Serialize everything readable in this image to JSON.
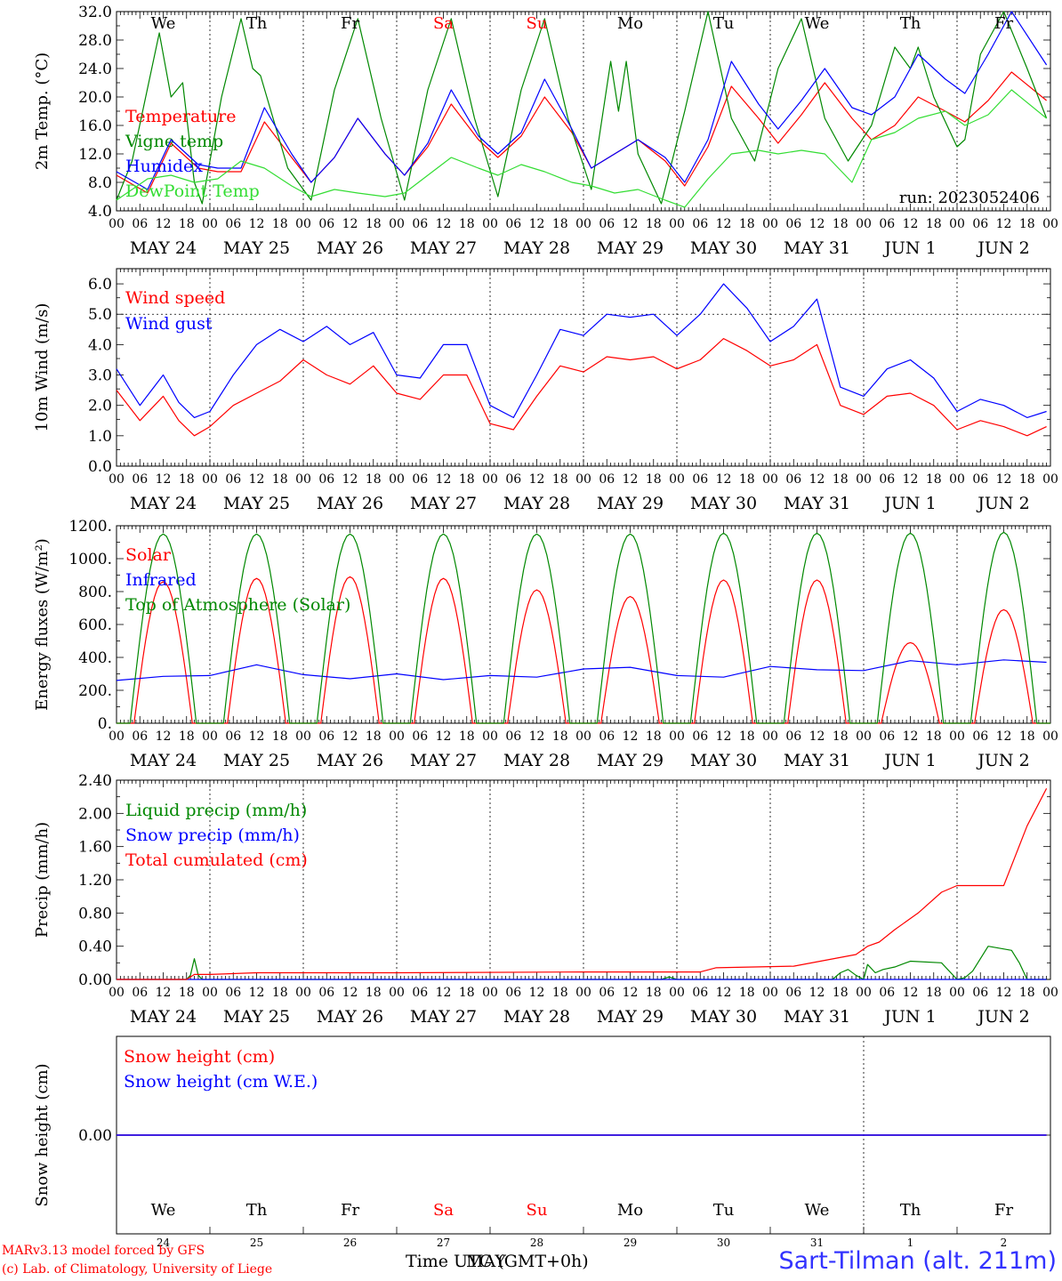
{
  "meta": {
    "run_label": "run: 2023052406",
    "model_credit": "MARv3.13 model forced by GFS",
    "lab_credit": "(c) Lab. of Climatology, University of Liege",
    "time_label": "Time UTC (GMT+0h)",
    "time_label_overlay": "MAY",
    "station": "Sart-Tilman (alt. 211m)"
  },
  "days": {
    "weekdays": [
      "We",
      "Th",
      "Fr",
      "Sa",
      "Su",
      "Mo",
      "Tu",
      "We",
      "Th",
      "Fr"
    ],
    "weekday_colors": [
      "#000000",
      "#000000",
      "#000000",
      "#ff0000",
      "#ff0000",
      "#000000",
      "#000000",
      "#000000",
      "#000000",
      "#000000"
    ],
    "dates": [
      "MAY 24",
      "MAY 25",
      "MAY 26",
      "MAY 27",
      "MAY 28",
      "MAY 29",
      "MAY 30",
      "MAY 31",
      "JUN  1",
      "JUN  2"
    ],
    "day_numbers": [
      "24",
      "25",
      "26",
      "27",
      "28",
      "29",
      "30",
      "31",
      "1",
      "2"
    ],
    "hour_ticks": [
      "00",
      "06",
      "12",
      "18"
    ],
    "end_tick": "00"
  },
  "chart_data": [
    {
      "type": "line",
      "ylabel": "2m Temp. (°C)",
      "ylim": [
        4,
        32
      ],
      "yticks": [
        "4.0",
        "8.0",
        "12.0",
        "16.0",
        "20.0",
        "24.0",
        "28.0",
        "32.0"
      ],
      "x_units": "hours since 2023-05-24 00 UTC",
      "reference_line": null,
      "series": [
        {
          "name": "Temperature",
          "color": "#ff0000",
          "x": [
            0,
            8,
            14,
            21,
            26,
            32,
            38,
            45,
            50,
            56,
            62,
            69,
            74,
            80,
            86,
            93,
            98,
            104,
            110,
            117,
            122,
            128,
            134,
            141,
            146,
            152,
            158,
            165,
            170,
            176,
            182,
            189,
            194,
            200,
            206,
            213,
            218,
            224,
            230,
            239
          ],
          "values": [
            9.0,
            6.5,
            13.5,
            10.0,
            9.5,
            9.5,
            16.5,
            11.5,
            8.0,
            11.5,
            17.0,
            12.0,
            9.0,
            13.0,
            19.0,
            14.0,
            11.5,
            14.5,
            20.0,
            15.0,
            10.0,
            12.0,
            14.0,
            11.0,
            7.5,
            13.0,
            21.5,
            17.0,
            13.5,
            17.5,
            22.0,
            17.0,
            14.0,
            16.0,
            20.0,
            18.0,
            16.5,
            19.5,
            23.5,
            19.5
          ]
        },
        {
          "name": "Vigne temp",
          "color": "#008800",
          "x": [
            0,
            4,
            11,
            14,
            17,
            20,
            22,
            27,
            32,
            35,
            37,
            44,
            50,
            56,
            62,
            68,
            74,
            80,
            86,
            92,
            98,
            104,
            110,
            116,
            122,
            127,
            129,
            131,
            134,
            140,
            146,
            152,
            158,
            164,
            170,
            176,
            182,
            188,
            194,
            200,
            204,
            206,
            210,
            216,
            218,
            222,
            228,
            234,
            239
          ],
          "values": [
            5.5,
            11.0,
            29.0,
            20.0,
            22.0,
            8.0,
            5.0,
            20.0,
            31.0,
            24.0,
            23.0,
            10.0,
            5.5,
            21.0,
            31.0,
            17.0,
            5.5,
            21.0,
            31.0,
            17.0,
            6.0,
            21.0,
            31.0,
            17.0,
            7.0,
            25.0,
            18.0,
            25.0,
            12.0,
            5.0,
            18.0,
            32.0,
            17.0,
            11.0,
            24.0,
            31.0,
            17.0,
            11.0,
            16.0,
            27.0,
            24.0,
            27.0,
            20.0,
            13.0,
            14.0,
            26.0,
            32.0,
            24.0,
            17.0
          ]
        },
        {
          "name": "Humidex",
          "color": "#0000ff",
          "x": [
            0,
            8,
            14,
            21,
            26,
            32,
            38,
            45,
            50,
            56,
            62,
            69,
            74,
            80,
            86,
            93,
            98,
            104,
            110,
            117,
            122,
            128,
            134,
            141,
            146,
            152,
            158,
            165,
            170,
            176,
            182,
            189,
            194,
            200,
            206,
            213,
            218,
            224,
            230,
            239
          ],
          "values": [
            9.5,
            7.0,
            14.0,
            10.5,
            10.0,
            10.0,
            18.5,
            12.0,
            8.0,
            11.5,
            17.0,
            12.0,
            9.0,
            13.5,
            21.0,
            14.5,
            12.0,
            15.0,
            22.5,
            15.5,
            10.0,
            12.0,
            14.0,
            11.5,
            8.0,
            14.0,
            25.0,
            19.0,
            15.5,
            19.5,
            24.0,
            18.5,
            17.5,
            20.0,
            26.0,
            22.5,
            20.5,
            26.0,
            32.0,
            24.5
          ]
        },
        {
          "name": "DewPoint Temp",
          "color": "#33dd33",
          "x": [
            0,
            8,
            14,
            20,
            26,
            32,
            38,
            45,
            50,
            56,
            62,
            69,
            74,
            80,
            86,
            93,
            98,
            104,
            110,
            117,
            122,
            128,
            134,
            141,
            146,
            152,
            158,
            165,
            170,
            176,
            182,
            189,
            194,
            200,
            206,
            213,
            218,
            224,
            230,
            239
          ],
          "values": [
            5.5,
            8.5,
            9.0,
            8.0,
            8.5,
            11.0,
            10.0,
            7.5,
            6.0,
            7.0,
            6.5,
            6.0,
            6.5,
            9.0,
            11.5,
            10.0,
            9.0,
            10.5,
            9.5,
            8.0,
            7.5,
            6.5,
            7.0,
            5.5,
            4.5,
            8.5,
            12.0,
            12.5,
            12.0,
            12.5,
            12.0,
            8.0,
            14.0,
            15.0,
            17.0,
            18.0,
            16.0,
            17.5,
            21.0,
            17.0
          ]
        }
      ]
    },
    {
      "type": "line",
      "ylabel": "10m Wind (m/s)",
      "ylim": [
        0,
        6.5
      ],
      "yticks": [
        "0.0",
        "1.0",
        "2.0",
        "3.0",
        "4.0",
        "5.0",
        "6.0"
      ],
      "x_units": "hours since 2023-05-24 00 UTC",
      "reference_line": 5.0,
      "series": [
        {
          "name": "Wind speed",
          "color": "#ff0000",
          "x": [
            0,
            6,
            12,
            16,
            20,
            24,
            30,
            36,
            42,
            48,
            54,
            60,
            66,
            72,
            78,
            84,
            90,
            96,
            102,
            108,
            114,
            120,
            126,
            132,
            138,
            144,
            150,
            156,
            162,
            168,
            174,
            180,
            186,
            192,
            198,
            204,
            210,
            216,
            222,
            228,
            234,
            239
          ],
          "values": [
            2.5,
            1.5,
            2.3,
            1.5,
            1.0,
            1.3,
            2.0,
            2.4,
            2.8,
            3.5,
            3.0,
            2.7,
            3.3,
            2.4,
            2.2,
            3.0,
            3.0,
            1.4,
            1.2,
            2.3,
            3.3,
            3.1,
            3.6,
            3.5,
            3.6,
            3.2,
            3.5,
            4.2,
            3.8,
            3.3,
            3.5,
            4.0,
            2.0,
            1.7,
            2.3,
            2.4,
            2.0,
            1.2,
            1.5,
            1.3,
            1.0,
            1.3
          ]
        },
        {
          "name": "Wind gust",
          "color": "#0000ff",
          "x": [
            0,
            6,
            12,
            16,
            20,
            24,
            30,
            36,
            42,
            48,
            54,
            60,
            66,
            72,
            78,
            84,
            90,
            96,
            102,
            108,
            114,
            120,
            126,
            132,
            138,
            144,
            150,
            156,
            162,
            168,
            174,
            180,
            186,
            192,
            198,
            204,
            210,
            216,
            222,
            228,
            234,
            239
          ],
          "values": [
            3.2,
            2.0,
            3.0,
            2.1,
            1.6,
            1.8,
            3.0,
            4.0,
            4.5,
            4.1,
            4.6,
            4.0,
            4.4,
            3.0,
            2.9,
            4.0,
            4.0,
            2.0,
            1.6,
            3.0,
            4.5,
            4.3,
            5.0,
            4.9,
            5.0,
            4.3,
            5.0,
            6.0,
            5.2,
            4.1,
            4.6,
            5.5,
            2.6,
            2.3,
            3.2,
            3.5,
            2.9,
            1.8,
            2.2,
            2.0,
            1.6,
            1.8
          ]
        }
      ]
    },
    {
      "type": "line",
      "ylabel": "Energy fluxes (W/m²)",
      "ylim": [
        0,
        1200
      ],
      "yticks": [
        "0.",
        "200.",
        "400.",
        "600.",
        "800.",
        "1000.",
        "1200."
      ],
      "x_units": "hours since 2023-05-24 00 UTC",
      "reference_line": null,
      "series": [
        {
          "name": "Solar",
          "color": "#ff0000",
          "diurnal": "peaks",
          "sunrise_h": 4.5,
          "sunset_h": 19.5,
          "values": [
            860,
            880,
            890,
            880,
            810,
            770,
            870,
            870,
            490,
            690
          ]
        },
        {
          "name": "Infrared",
          "color": "#0000ff",
          "x": [
            0,
            12,
            24,
            36,
            48,
            60,
            72,
            84,
            96,
            108,
            120,
            132,
            144,
            156,
            168,
            180,
            192,
            204,
            216,
            228,
            239
          ],
          "values": [
            260,
            285,
            290,
            355,
            295,
            270,
            300,
            265,
            290,
            280,
            330,
            340,
            290,
            280,
            345,
            325,
            320,
            380,
            355,
            385,
            370
          ]
        },
        {
          "name": "Top of Atmosphere (Solar)",
          "color": "#008800",
          "diurnal": "peaks",
          "sunrise_h": 3.5,
          "sunset_h": 20.5,
          "values": [
            1150,
            1150,
            1150,
            1150,
            1150,
            1150,
            1155,
            1155,
            1155,
            1160
          ]
        }
      ]
    },
    {
      "type": "line",
      "ylabel": "Precip (mm/h)",
      "ylim": [
        0,
        2.4
      ],
      "yticks": [
        "0.00",
        "0.40",
        "0.80",
        "1.20",
        "1.60",
        "2.00",
        "2.40"
      ],
      "x_units": "hours since 2023-05-24 00 UTC",
      "reference_line": null,
      "series": [
        {
          "name": "Liquid precip (mm/h)",
          "color": "#008800",
          "x": [
            0,
            18,
            19,
            20,
            21,
            22,
            140,
            142,
            144,
            184,
            186,
            188,
            190,
            192,
            193,
            195,
            197,
            200,
            204,
            212,
            216,
            218,
            220,
            224,
            230,
            232,
            234,
            239
          ],
          "values": [
            0,
            0,
            0.05,
            0.25,
            0.05,
            0,
            0,
            0.03,
            0,
            0,
            0.08,
            0.12,
            0.05,
            0,
            0.18,
            0.08,
            0.12,
            0.15,
            0.22,
            0.2,
            0,
            0.02,
            0.1,
            0.4,
            0.35,
            0.2,
            0,
            0
          ]
        },
        {
          "name": "Snow precip (mm/h)",
          "color": "#0000ff",
          "x": [
            0,
            239
          ],
          "values": [
            0,
            0
          ]
        },
        {
          "name": "Total cumulated (cm)",
          "color": "#ff0000",
          "x": [
            0,
            18,
            20,
            24,
            36,
            72,
            120,
            150,
            154,
            174,
            190,
            193,
            196,
            200,
            206,
            212,
            216,
            228,
            234,
            239
          ],
          "values": [
            0,
            0,
            0.06,
            0.06,
            0.08,
            0.08,
            0.09,
            0.09,
            0.14,
            0.16,
            0.3,
            0.4,
            0.45,
            0.6,
            0.8,
            1.05,
            1.13,
            1.13,
            1.85,
            2.3
          ]
        }
      ]
    },
    {
      "type": "line",
      "ylabel": "Snow height (cm)",
      "ylim": [
        -1,
        1
      ],
      "yticks": [
        "0.00"
      ],
      "x_units": "hours since 2023-05-24 00 UTC",
      "reference_line": null,
      "series": [
        {
          "name": "Snow height (cm)",
          "color": "#ff0000",
          "x": [
            0,
            239
          ],
          "values": [
            0,
            0
          ]
        },
        {
          "name": "Snow height (cm W.E.)",
          "color": "#0000ff",
          "x": [
            0,
            239
          ],
          "values": [
            0,
            0
          ]
        }
      ]
    }
  ]
}
